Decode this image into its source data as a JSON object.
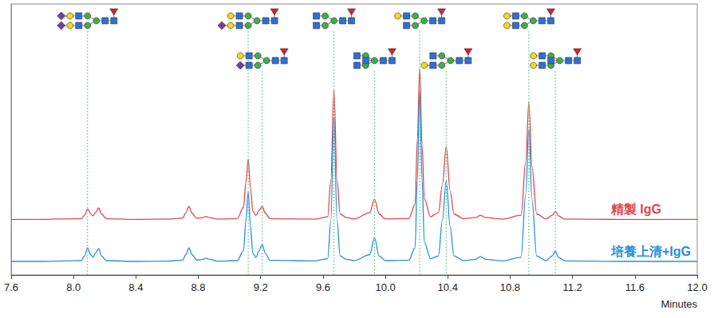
{
  "chart_data": {
    "type": "line",
    "x": [
      7.6,
      7.8,
      7.95,
      8.05,
      8.07,
      8.09,
      8.11,
      8.125,
      8.14,
      8.16,
      8.18,
      8.21,
      8.4,
      8.6,
      8.7,
      8.72,
      8.74,
      8.76,
      8.79,
      8.83,
      8.85,
      8.87,
      8.92,
      9.05,
      9.09,
      9.105,
      9.12,
      9.135,
      9.15,
      9.17,
      9.19,
      9.21,
      9.23,
      9.26,
      9.55,
      9.63,
      9.65,
      9.67,
      9.69,
      9.71,
      9.75,
      9.8,
      9.9,
      9.93,
      9.96,
      10.0,
      10.15,
      10.19,
      10.205,
      10.22,
      10.235,
      10.25,
      10.29,
      10.34,
      10.365,
      10.39,
      10.415,
      10.44,
      10.5,
      10.58,
      10.61,
      10.64,
      10.75,
      10.87,
      10.9,
      10.92,
      10.94,
      10.97,
      11.03,
      11.07,
      11.09,
      11.11,
      11.15,
      11.5,
      12.0
    ],
    "series": [
      {
        "name": "精製 IgG",
        "color": "#d9484b",
        "values": [
          20.5,
          20.5,
          20.7,
          20.8,
          22.0,
          24.4,
          22.6,
          21.8,
          23.0,
          24.7,
          22.5,
          20.8,
          20.5,
          20.6,
          21.0,
          23.0,
          25.3,
          22.8,
          20.9,
          21.2,
          21.6,
          21.2,
          20.6,
          20.8,
          25.0,
          34.0,
          42.6,
          32.0,
          23.5,
          22.0,
          23.8,
          25.3,
          22.8,
          20.8,
          20.6,
          21.5,
          35.0,
          68.5,
          35.0,
          22.5,
          21.2,
          20.7,
          23.0,
          28.0,
          22.5,
          20.7,
          20.8,
          26.0,
          50.0,
          76.2,
          48.0,
          28.0,
          21.5,
          23.0,
          33.0,
          47.4,
          31.0,
          22.5,
          20.8,
          21.2,
          22.0,
          21.2,
          20.6,
          22.0,
          42.0,
          63.8,
          40.0,
          22.5,
          20.7,
          22.0,
          23.5,
          21.8,
          20.6,
          20.5,
          20.5
        ]
      },
      {
        "name": "培養上清+IgG",
        "color": "#2a8fd4",
        "values": [
          5.0,
          5.0,
          5.2,
          5.3,
          7.0,
          10.0,
          7.5,
          6.5,
          8.0,
          9.7,
          7.0,
          5.3,
          5.0,
          5.1,
          5.5,
          7.5,
          10.0,
          7.5,
          5.5,
          5.8,
          6.2,
          5.8,
          5.1,
          5.3,
          9.0,
          20.0,
          30.6,
          18.0,
          8.0,
          6.5,
          9.0,
          11.2,
          8.0,
          5.4,
          5.2,
          6.0,
          20.0,
          58.0,
          20.0,
          7.0,
          5.8,
          5.3,
          7.5,
          13.8,
          7.0,
          5.3,
          5.4,
          10.0,
          35.0,
          68.0,
          35.0,
          12.0,
          6.0,
          7.0,
          20.0,
          34.7,
          18.0,
          7.0,
          5.3,
          5.8,
          6.8,
          5.8,
          5.2,
          6.5,
          30.0,
          53.8,
          28.0,
          7.0,
          5.3,
          7.0,
          8.8,
          6.5,
          5.2,
          5.0,
          5.0
        ]
      }
    ],
    "xlabel": "Minutes",
    "xlim": [
      7.6,
      12.0
    ],
    "xticks": [
      7.6,
      {
        "value": 8.0,
        "label": "8.0"
      },
      8.4,
      8.8,
      9.2,
      9.6,
      {
        "value": 10.0,
        "label": "10.0"
      },
      10.4,
      10.8,
      11.2,
      11.6,
      {
        "value": 12.0,
        "label": "12.0"
      }
    ],
    "ylim": [
      0,
      100
    ],
    "tick_labels": "x",
    "peaks": [
      8.09,
      9.12,
      9.21,
      9.67,
      9.93,
      10.22,
      10.39,
      10.92,
      11.09
    ]
  }
}
